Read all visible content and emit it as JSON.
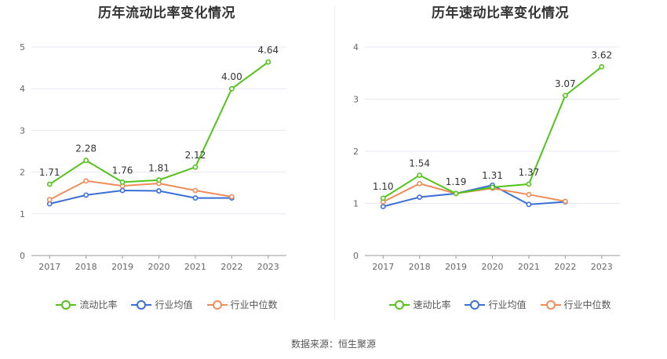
{
  "source": "数据来源：恒生聚源",
  "chart_data": [
    {
      "type": "line",
      "title": "历年流动比率变化情况",
      "categories": [
        "2017",
        "2018",
        "2019",
        "2020",
        "2021",
        "2022",
        "2023"
      ],
      "ylim": [
        0,
        5
      ],
      "yticks": [
        "0",
        "1",
        "2",
        "3",
        "4",
        "5"
      ],
      "grid": true,
      "legend_position": "bottom",
      "series": [
        {
          "name": "流动比率",
          "color": "#52c41a",
          "values": [
            1.71,
            2.28,
            1.76,
            1.81,
            2.12,
            4.0,
            4.64
          ],
          "labels": [
            "1.71",
            "2.28",
            "1.76",
            "1.81",
            "2.12",
            "4.00",
            "4.64"
          ]
        },
        {
          "name": "行业均值",
          "color": "#3a6fd8",
          "values": [
            1.24,
            1.45,
            1.56,
            1.55,
            1.38,
            1.38,
            null
          ]
        },
        {
          "name": "行业中位数",
          "color": "#f08c5a",
          "values": [
            1.34,
            1.79,
            1.67,
            1.73,
            1.56,
            1.41,
            null
          ]
        }
      ]
    },
    {
      "type": "line",
      "title": "历年速动比率变化情况",
      "categories": [
        "2017",
        "2018",
        "2019",
        "2020",
        "2021",
        "2022",
        "2023"
      ],
      "ylim": [
        0,
        4
      ],
      "yticks": [
        "0",
        "1",
        "2",
        "3",
        "4"
      ],
      "grid": true,
      "legend_position": "bottom",
      "series": [
        {
          "name": "速动比率",
          "color": "#52c41a",
          "values": [
            1.1,
            1.54,
            1.19,
            1.31,
            1.37,
            3.07,
            3.62
          ],
          "labels": [
            "1.10",
            "1.54",
            "1.19",
            "1.31",
            "1.37",
            "3.07",
            "3.62"
          ]
        },
        {
          "name": "行业均值",
          "color": "#3a6fd8",
          "values": [
            0.94,
            1.12,
            1.19,
            1.35,
            0.98,
            1.03,
            null
          ]
        },
        {
          "name": "行业中位数",
          "color": "#f08c5a",
          "values": [
            1.03,
            1.38,
            1.19,
            1.29,
            1.17,
            1.04,
            null
          ]
        }
      ]
    }
  ]
}
